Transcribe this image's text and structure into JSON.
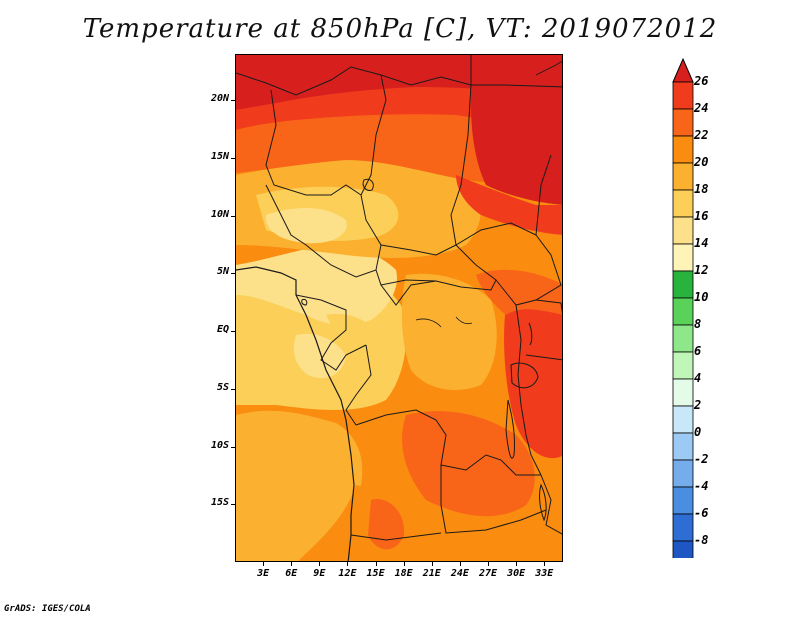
{
  "title": "Temperature at 850hPa [C], VT: 2019072012",
  "credit": "GrADS: IGES/COLA",
  "map": {
    "region": "Central Africa",
    "lat_range": [
      -20,
      24
    ],
    "lon_range": [
      0,
      35
    ]
  },
  "axes": {
    "y_ticks": [
      {
        "label": "20N",
        "lat": 20
      },
      {
        "label": "15N",
        "lat": 15
      },
      {
        "label": "10N",
        "lat": 10
      },
      {
        "label": "5N",
        "lat": 5
      },
      {
        "label": "EQ",
        "lat": 0
      },
      {
        "label": "5S",
        "lat": -5
      },
      {
        "label": "10S",
        "lat": -10
      },
      {
        "label": "15S",
        "lat": -15
      }
    ],
    "x_ticks": [
      {
        "label": "3E",
        "lon": 3
      },
      {
        "label": "6E",
        "lon": 6
      },
      {
        "label": "9E",
        "lon": 9
      },
      {
        "label": "12E",
        "lon": 12
      },
      {
        "label": "15E",
        "lon": 15
      },
      {
        "label": "18E",
        "lon": 18
      },
      {
        "label": "21E",
        "lon": 21
      },
      {
        "label": "24E",
        "lon": 24
      },
      {
        "label": "27E",
        "lon": 27
      },
      {
        "label": "30E",
        "lon": 30
      },
      {
        "label": "33E",
        "lon": 33
      }
    ]
  },
  "colorbar": {
    "labels": [
      "26",
      "24",
      "22",
      "20",
      "18",
      "16",
      "14",
      "12",
      "10",
      "8",
      "6",
      "4",
      "2",
      "0",
      "-2",
      "-4",
      "-6",
      "-8"
    ],
    "colors": [
      "#d7201e",
      "#f03c1c",
      "#f86418",
      "#fa8c10",
      "#fbb030",
      "#fbcf58",
      "#fde08a",
      "#fff4b8",
      "#28b43c",
      "#5ad25a",
      "#8ee88a",
      "#c0f6b8",
      "#e4fbe8",
      "#c8e8fa",
      "#9ccaf4",
      "#74acec",
      "#4a8ee2",
      "#2e6ed4",
      "#1e56c4",
      "#0c32a0",
      "#0a147c",
      "#e4e4f8"
    ]
  },
  "field_colors": {
    "c26": "#d7201e",
    "c24": "#f03c1c",
    "c22": "#f86418",
    "c20": "#fa8c10",
    "c18": "#fbb030",
    "c16": "#fbcf58",
    "c14": "#fde08a",
    "border": "#1a1a1a"
  }
}
